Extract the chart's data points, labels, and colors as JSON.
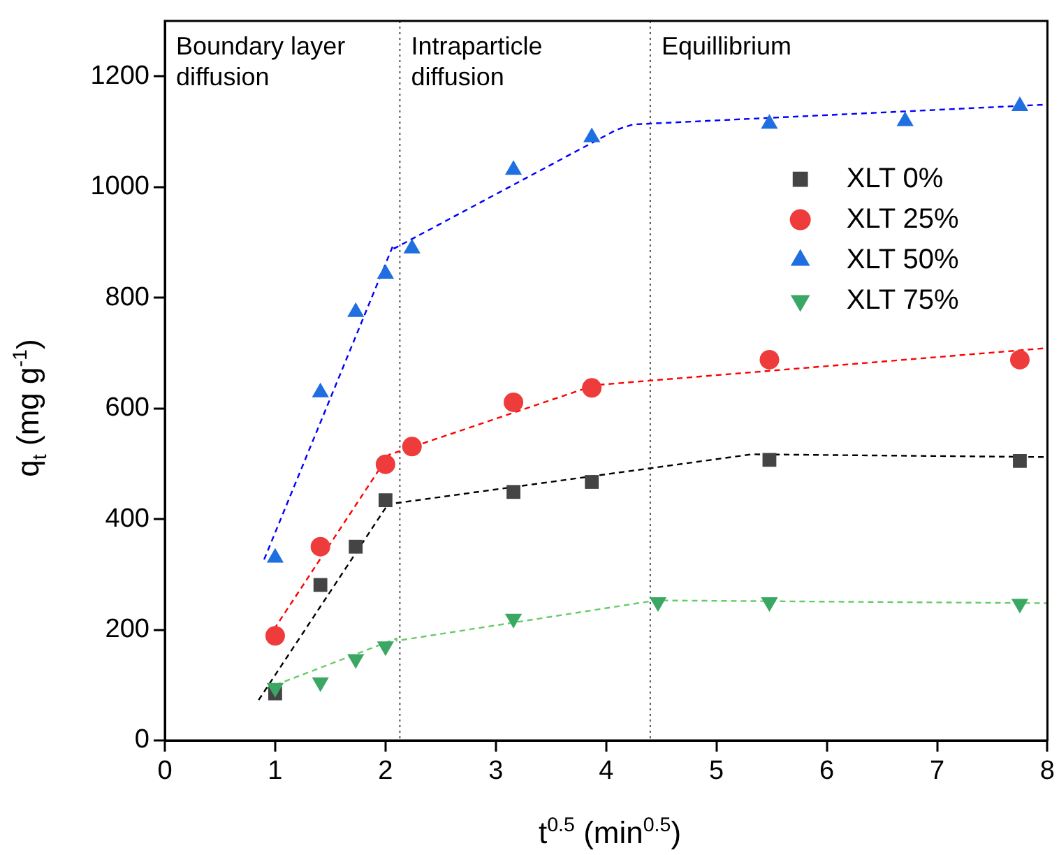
{
  "chart_data": {
    "type": "scatter",
    "xlabel": "t$^{0.5}$ (min$^{0.5}$)",
    "ylabel": "q$_{t}$ (mg g$^{-1}$)",
    "xlim": [
      0,
      8
    ],
    "xticks": [
      0,
      1,
      2,
      3,
      4,
      5,
      6,
      7,
      8
    ],
    "ylim": [
      0,
      1300
    ],
    "yticks": [
      0,
      200,
      400,
      600,
      800,
      1000,
      1200
    ],
    "grid": false,
    "legend": "right",
    "ref_lines": [
      {
        "axis": "x",
        "value": 2.13,
        "color": "#555555",
        "line_style": "dotted"
      },
      {
        "axis": "x",
        "value": 4.4,
        "color": "#555555",
        "line_style": "dotted"
      }
    ],
    "annotations": [
      "Boundary layer\ndiffusion",
      "Intraparticle\ndiffusion",
      "Equillibrium"
    ],
    "series": [
      {
        "name": "XLT 0%",
        "marker": "square",
        "color": "#444444",
        "x": [
          1,
          1.41,
          1.73,
          2,
          3.16,
          3.87,
          5.48,
          7.75
        ],
        "values": [
          85,
          281,
          350,
          434,
          449,
          467,
          507,
          505
        ]
      },
      {
        "name": "XLT 25%",
        "marker": "circle",
        "color": "#ee3b3b",
        "x": [
          1,
          1.41,
          2,
          2.24,
          3.16,
          3.87,
          5.48,
          7.75
        ],
        "values": [
          189,
          350,
          499,
          531,
          611,
          637,
          688,
          688
        ]
      },
      {
        "name": "XLT 50%",
        "marker": "triangle",
        "color": "#1f6fe0",
        "x": [
          1,
          1.41,
          1.73,
          2,
          2.24,
          3.16,
          3.87,
          5.48,
          6.71,
          7.75
        ],
        "values": [
          330,
          629,
          774,
          843,
          889,
          1031,
          1090,
          1114,
          1119,
          1146
        ]
      },
      {
        "name": "XLT 75%",
        "marker": "triangle_down",
        "color": "#3aa864",
        "x": [
          1,
          1.41,
          1.73,
          2,
          3.16,
          4.47,
          5.48,
          7.75
        ],
        "values": [
          95,
          105,
          147,
          170,
          220,
          250,
          250,
          247
        ]
      },
      {
        "type": "line",
        "marker": "none",
        "line_style": "dashed",
        "color": "#000000",
        "x": [
          0.85,
          2.03,
          2.03,
          5.32,
          5.32,
          8
        ],
        "values": [
          73,
          429,
          427,
          517,
          517,
          512
        ]
      },
      {
        "type": "line",
        "marker": "none",
        "line_style": "dashed",
        "color": "#ff0000",
        "x": [
          0.99,
          2.03,
          2.03,
          3.9,
          3.9,
          8
        ],
        "values": [
          201,
          516,
          516,
          642,
          642,
          709
        ]
      },
      {
        "type": "line",
        "marker": "none",
        "line_style": "dashed",
        "color": "#0000ff",
        "x": [
          0.9,
          2.07,
          2.08,
          4.09,
          4.24,
          8
        ],
        "values": [
          327,
          895,
          889,
          1103,
          1113,
          1149
        ]
      },
      {
        "type": "line",
        "marker": "none",
        "line_style": "dashed",
        "color": "#66cc66",
        "x": [
          0.92,
          2.1,
          2.1,
          4.45,
          4.45,
          8
        ],
        "values": [
          94,
          184,
          180,
          253,
          253,
          248
        ]
      }
    ]
  }
}
